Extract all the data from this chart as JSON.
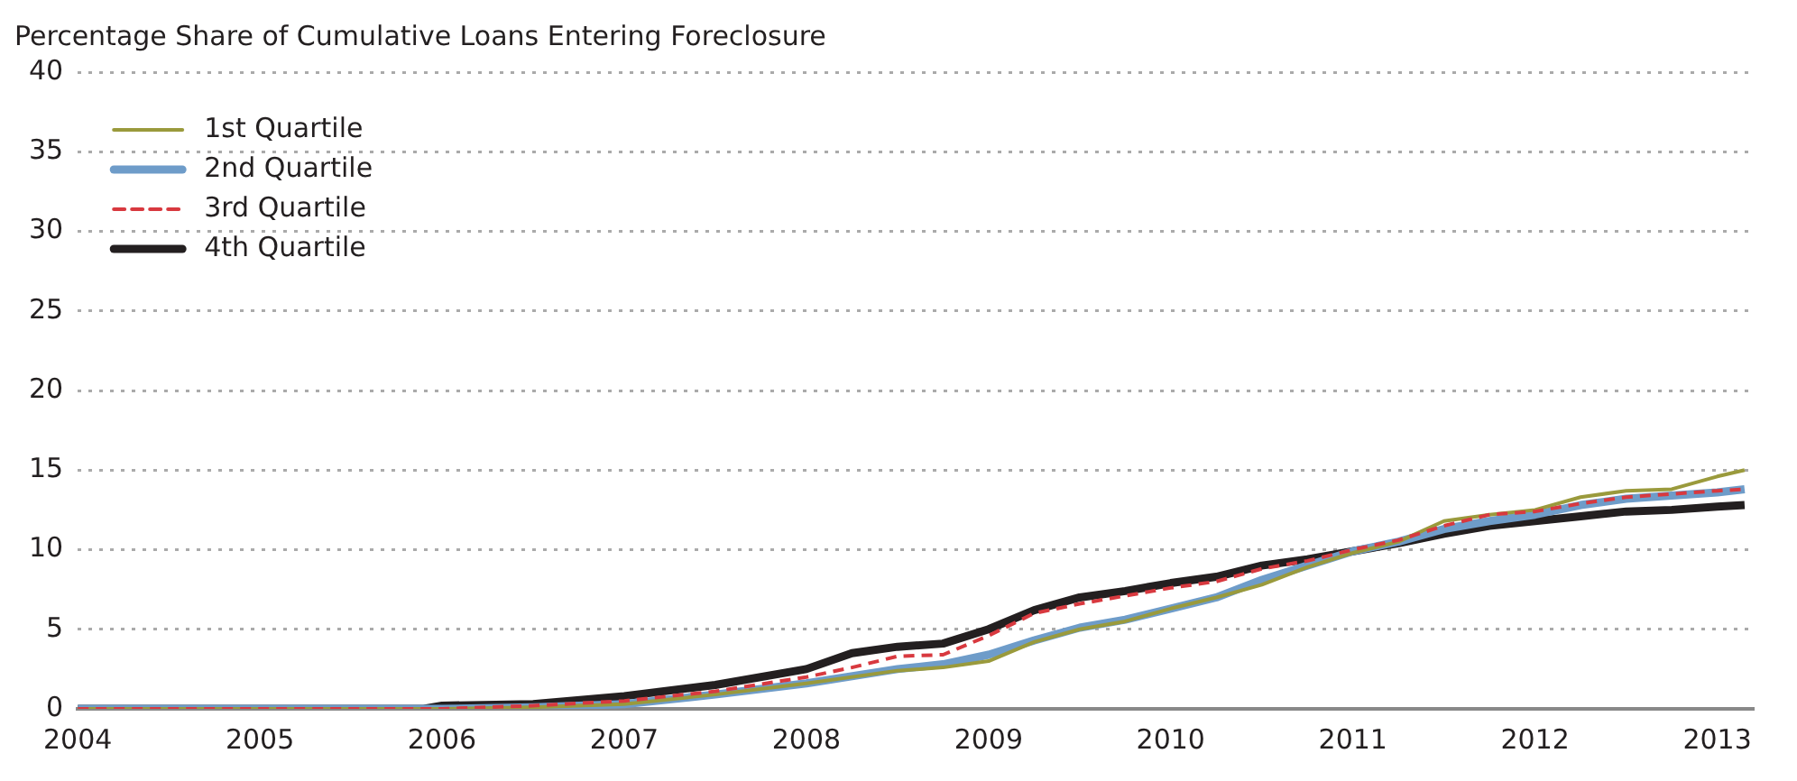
{
  "chart_data": {
    "type": "line",
    "title": "Percentage Share of Cumulative Loans Entering Foreclosure",
    "xlim": [
      2004,
      2013.2
    ],
    "xticks": [
      2004,
      2005,
      2006,
      2007,
      2008,
      2009,
      2010,
      2011,
      2012,
      2013
    ],
    "ylim": [
      0,
      40
    ],
    "yticks": [
      0,
      5,
      10,
      15,
      20,
      25,
      30,
      35,
      40
    ],
    "grid": "y",
    "legend": "top left",
    "marker": "none",
    "series": [
      {
        "name": "1st Quartile",
        "color": "#9a9a3c",
        "line_style": "solid",
        "x": [
          2004,
          2006,
          2006.5,
          2007,
          2007.5,
          2008,
          2008.5,
          2008.75,
          2009,
          2009.25,
          2009.5,
          2009.75,
          2010,
          2010.25,
          2010.5,
          2010.75,
          2011,
          2011.25,
          2011.5,
          2011.75,
          2012,
          2012.25,
          2012.5,
          2012.75,
          2013,
          2013.15
        ],
        "values": [
          0,
          0,
          0.1,
          0.3,
          0.9,
          1.6,
          2.4,
          2.6,
          3.0,
          4.2,
          5.0,
          5.5,
          6.3,
          7.0,
          7.8,
          8.9,
          9.8,
          10.5,
          11.8,
          12.2,
          12.5,
          13.3,
          13.7,
          13.8,
          14.6,
          15.0
        ]
      },
      {
        "name": "2nd Quartile",
        "color": "#6e9cc9",
        "line_style": "solid",
        "x": [
          2004,
          2006,
          2006.5,
          2007,
          2007.5,
          2008,
          2008.5,
          2008.75,
          2009,
          2009.25,
          2009.5,
          2009.75,
          2010,
          2010.25,
          2010.5,
          2010.75,
          2011,
          2011.25,
          2011.5,
          2011.75,
          2012,
          2012.25,
          2012.5,
          2012.75,
          2013,
          2013.15
        ],
        "values": [
          0,
          0,
          0.1,
          0.3,
          0.9,
          1.6,
          2.5,
          2.8,
          3.4,
          4.3,
          5.1,
          5.6,
          6.3,
          7.0,
          8.1,
          9.0,
          9.9,
          10.5,
          11.3,
          11.8,
          12.2,
          12.8,
          13.2,
          13.4,
          13.6,
          13.8
        ]
      },
      {
        "name": "3rd Quartile",
        "color": "#d8393f",
        "line_style": "dashed",
        "x": [
          2004,
          2006,
          2006.5,
          2007,
          2007.5,
          2008,
          2008.25,
          2008.5,
          2008.75,
          2009,
          2009.25,
          2009.5,
          2009.75,
          2010,
          2010.25,
          2010.5,
          2010.75,
          2011,
          2011.25,
          2011.5,
          2011.75,
          2012,
          2012.25,
          2012.5,
          2012.75,
          2013,
          2013.15
        ],
        "values": [
          0,
          0,
          0.2,
          0.5,
          1.1,
          2.0,
          2.6,
          3.3,
          3.4,
          4.6,
          6.0,
          6.6,
          7.1,
          7.6,
          8.0,
          8.8,
          9.3,
          10.0,
          10.6,
          11.5,
          12.2,
          12.4,
          12.9,
          13.3,
          13.5,
          13.7,
          13.8
        ]
      },
      {
        "name": "4th Quartile",
        "color": "#231f20",
        "line_style": "solid",
        "x": [
          2004,
          2005.9,
          2006,
          2006.5,
          2007,
          2007.5,
          2008,
          2008.25,
          2008.5,
          2008.75,
          2009,
          2009.25,
          2009.5,
          2009.75,
          2010,
          2010.25,
          2010.5,
          2010.75,
          2011,
          2011.25,
          2011.5,
          2011.75,
          2012,
          2012.25,
          2012.5,
          2012.75,
          2013,
          2013.15
        ],
        "values": [
          0,
          0,
          0.2,
          0.3,
          0.8,
          1.5,
          2.5,
          3.5,
          3.9,
          4.1,
          5.0,
          6.2,
          7.0,
          7.4,
          7.9,
          8.3,
          9.0,
          9.4,
          9.9,
          10.4,
          11.0,
          11.5,
          11.8,
          12.1,
          12.4,
          12.5,
          12.7,
          12.8
        ]
      }
    ]
  }
}
